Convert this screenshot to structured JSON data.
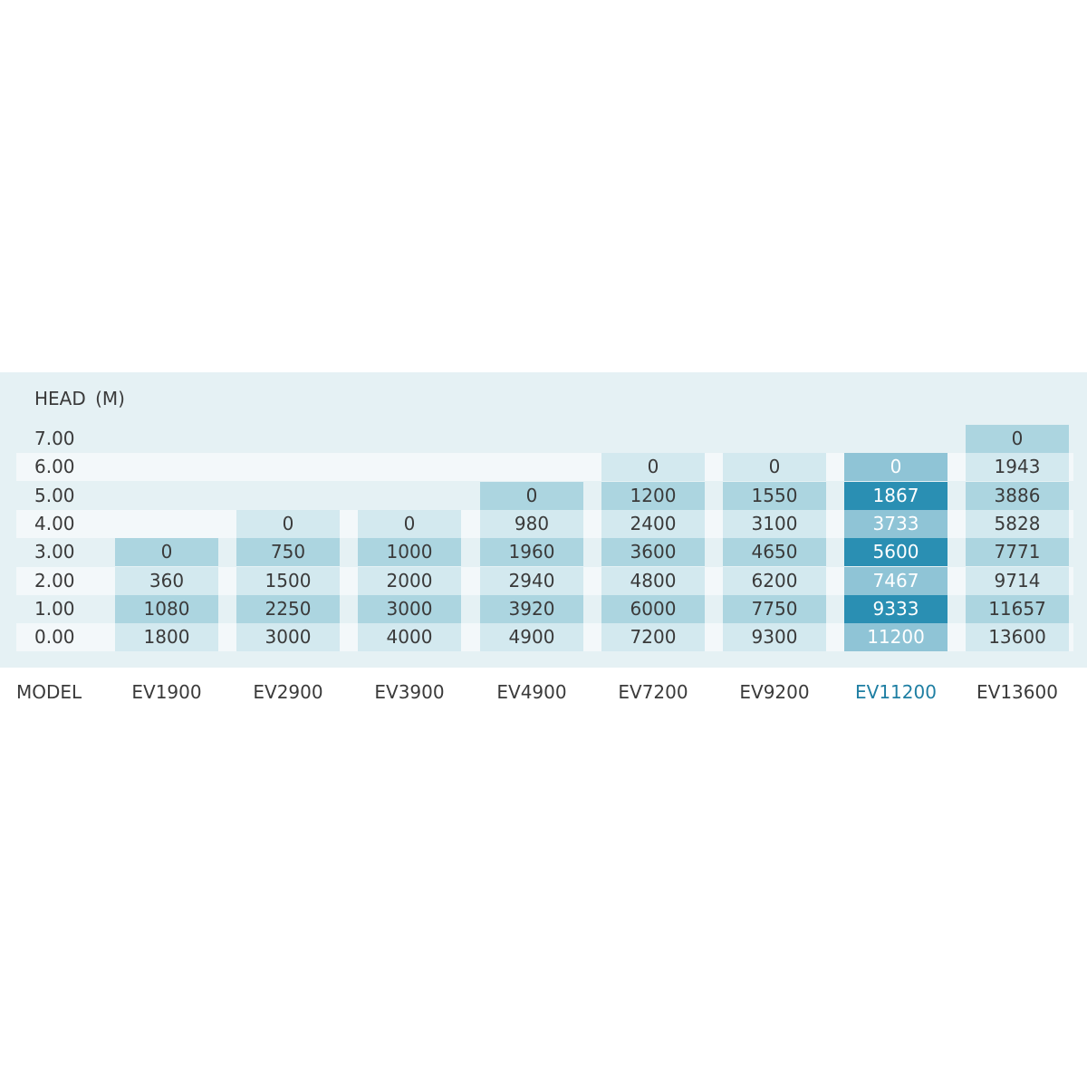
{
  "chart_data": {
    "type": "table",
    "row_axis_label": "HEAD  (M)",
    "column_axis_label": "MODEL",
    "heads": [
      "7.00",
      "6.00",
      "5.00",
      "4.00",
      "3.00",
      "2.00",
      "1.00",
      "0.00"
    ],
    "highlighted_model": "EV11200",
    "models": [
      {
        "name": "EV1900",
        "flows": [
          null,
          null,
          null,
          null,
          0,
          360,
          1080,
          1800
        ]
      },
      {
        "name": "EV2900",
        "flows": [
          null,
          null,
          null,
          0,
          750,
          1500,
          2250,
          3000
        ]
      },
      {
        "name": "EV3900",
        "flows": [
          null,
          null,
          null,
          0,
          1000,
          2000,
          3000,
          4000
        ]
      },
      {
        "name": "EV4900",
        "flows": [
          null,
          null,
          0,
          980,
          1960,
          2940,
          3920,
          4900
        ]
      },
      {
        "name": "EV7200",
        "flows": [
          null,
          0,
          1200,
          2400,
          3600,
          4800,
          6000,
          7200
        ]
      },
      {
        "name": "EV9200",
        "flows": [
          null,
          0,
          1550,
          3100,
          4650,
          6200,
          7750,
          9300
        ]
      },
      {
        "name": "EV11200",
        "flows": [
          null,
          0,
          1867,
          3733,
          5600,
          7467,
          9333,
          11200
        ]
      },
      {
        "name": "EV13600",
        "flows": [
          0,
          1943,
          3886,
          5828,
          7771,
          9714,
          11657,
          13600
        ]
      }
    ]
  },
  "colors": {
    "panel": "#e5f1f4",
    "stripe": "#f3f8fa",
    "cell_dark": "#acd5e0",
    "cell_light": "#d3e9ef",
    "highlight_dark": "#2a8fb3",
    "highlight_light": "#8fc4d6",
    "highlight_label": "#1f7fa3"
  }
}
